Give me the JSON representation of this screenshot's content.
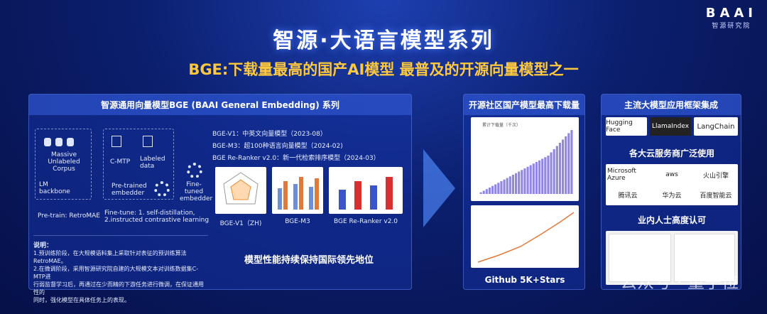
{
  "logo": {
    "mark": "BAAI",
    "sub": "智源研究院"
  },
  "title": "智源·大语言模型系列",
  "subtitle": "BGE:下载量最高的国产AI模型  最普及的开源向量模型之一",
  "left_panel": {
    "heading": "智源通用向量模型BGE (BAAI General Embedding) 系列",
    "diagram": {
      "corpus": "Massive Unlabeled Corpus",
      "lm": "LM backbone",
      "pretrain": "Pre-train: RetroMAE",
      "cmtp": "C-MTP",
      "labeled": "Labeled data",
      "pretrained": "Pre-trained embedder",
      "finetune_label": "Fine-tune: 1. self-distillation, 2.instructed contrastive learning",
      "finetuned": "Fine-tuned embedder"
    },
    "versions": [
      "BGE-V1：中英文向量模型（2023-08）",
      "BGE-M3：超100种语言向量模型（2024-02)",
      "BGE Re-Ranker v2.0：新一代检索排序模型（2024-03）"
    ],
    "charts": [
      "BGE-V1（ZH)",
      "BGE-M3",
      "BGE Re-Ranker v2.0"
    ],
    "note_title": "说明：",
    "note_lines": [
      "1.预训练阶段，在大规模语料集上采取针对表征的预训练算法RetroMAE。",
      "2.在微调阶段，采用智源研究院自建的大规模文本对训练数据集C-MTP进",
      "行弱监督学习后，再通过在少而精的下游任务进行微调，在保证通用性的",
      "同时，强化模型在具体任务上的表现。"
    ],
    "performance": "模型性能持续保持国际领先地位"
  },
  "middle_panel": {
    "heading": "开源社区国产模型最高下载量",
    "chart_legend": "累计下载量（千次）",
    "footer": "Github 5K+Stars",
    "download_values": [
      1,
      2,
      3,
      4,
      5,
      6,
      7,
      8,
      9,
      10,
      11,
      12,
      13,
      14,
      15,
      16,
      17,
      18,
      19,
      20,
      21,
      22,
      23,
      24,
      26,
      28,
      30,
      32,
      34,
      36,
      38,
      40
    ]
  },
  "right_panel": {
    "heading": "主流大模型应用框架集成",
    "frameworks": [
      "Hugging Face",
      "LlamaIndex",
      "LangChain"
    ],
    "cloud_title": "各大云服务商广泛使用",
    "clouds": [
      "Microsoft Azure",
      "aws",
      "火山引擎",
      "腾讯云",
      "华为云",
      "百度智能云"
    ],
    "recognition_title": "业内人士高度认可"
  },
  "watermark": "公众号 · 量子位",
  "colors": {
    "accent": "#ffc83d",
    "bar": "#8f86e6"
  }
}
